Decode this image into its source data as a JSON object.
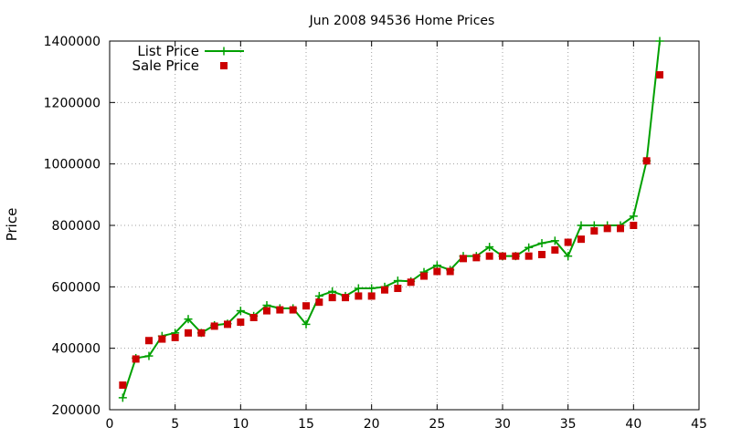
{
  "chart_data": {
    "type": "line",
    "title": "Jun 2008 94536 Home Prices",
    "xlabel": "",
    "ylabel": "Price",
    "xlim": [
      0,
      45
    ],
    "ylim": [
      200000,
      1400000
    ],
    "xticks": [
      0,
      5,
      10,
      15,
      20,
      25,
      30,
      35,
      40,
      45
    ],
    "yticks": [
      200000,
      400000,
      600000,
      800000,
      1000000,
      1200000,
      1400000
    ],
    "grid": true,
    "legend_position": "top-left",
    "series": [
      {
        "name": "List Price",
        "style": "line-plus",
        "color": "#00a000",
        "x": [
          1,
          2,
          3,
          4,
          5,
          6,
          7,
          8,
          9,
          10,
          11,
          12,
          13,
          14,
          15,
          16,
          17,
          18,
          19,
          20,
          21,
          22,
          23,
          24,
          25,
          26,
          27,
          28,
          29,
          30,
          31,
          32,
          33,
          34,
          35,
          36,
          37,
          38,
          39,
          40,
          41,
          42
        ],
        "values": [
          239000,
          368000,
          375000,
          440000,
          450000,
          495000,
          450000,
          475000,
          480000,
          522000,
          505000,
          540000,
          530000,
          530000,
          478000,
          570000,
          585000,
          570000,
          595000,
          595000,
          600000,
          620000,
          618000,
          648000,
          670000,
          655000,
          700000,
          700000,
          730000,
          700000,
          700000,
          728000,
          742000,
          750000,
          700000,
          800000,
          800000,
          800000,
          800000,
          830000,
          1010000,
          1400000
        ]
      },
      {
        "name": "Sale Price",
        "style": "square-markers",
        "color": "#cc0000",
        "x": [
          1,
          2,
          3,
          4,
          5,
          6,
          7,
          8,
          9,
          10,
          11,
          12,
          13,
          14,
          15,
          16,
          17,
          18,
          19,
          20,
          21,
          22,
          23,
          24,
          25,
          26,
          27,
          28,
          29,
          30,
          31,
          32,
          33,
          34,
          35,
          36,
          37,
          38,
          39,
          40,
          41,
          42
        ],
        "values": [
          280000,
          365000,
          425000,
          430000,
          435000,
          450000,
          450000,
          472000,
          478000,
          485000,
          500000,
          522000,
          525000,
          525000,
          538000,
          550000,
          565000,
          565000,
          570000,
          570000,
          590000,
          595000,
          615000,
          635000,
          650000,
          650000,
          692000,
          695000,
          700000,
          700000,
          700000,
          700000,
          705000,
          720000,
          745000,
          755000,
          782000,
          790000,
          790000,
          800000,
          1010000,
          1290000
        ]
      }
    ]
  }
}
